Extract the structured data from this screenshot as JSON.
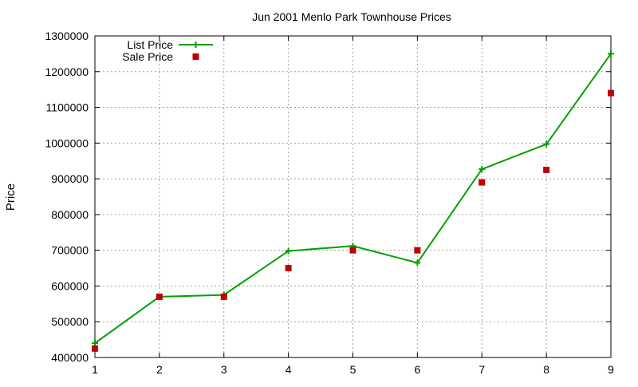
{
  "chart_data": {
    "type": "line",
    "title": "Jun 2001 Menlo Park Townhouse Prices",
    "xlabel": "",
    "ylabel": "Price",
    "x": [
      1,
      2,
      3,
      4,
      5,
      6,
      7,
      8,
      9
    ],
    "xlim": [
      1,
      9
    ],
    "ylim": [
      400000,
      1300000
    ],
    "xticks": [
      1,
      2,
      3,
      4,
      5,
      6,
      7,
      8,
      9
    ],
    "yticks": [
      400000,
      500000,
      600000,
      700000,
      800000,
      900000,
      1000000,
      1100000,
      1200000,
      1300000
    ],
    "grid": true,
    "legend_position": "top-left",
    "series": [
      {
        "name": "List Price",
        "style": "line-with-plus-markers",
        "color": "#00a000",
        "values": [
          440000,
          570000,
          575000,
          698000,
          712000,
          665000,
          927000,
          997000,
          1250000
        ]
      },
      {
        "name": "Sale Price",
        "style": "square-markers",
        "color": "#c00000",
        "values": [
          425000,
          570000,
          570000,
          650000,
          700000,
          700000,
          890000,
          925000,
          1140000
        ]
      }
    ]
  }
}
